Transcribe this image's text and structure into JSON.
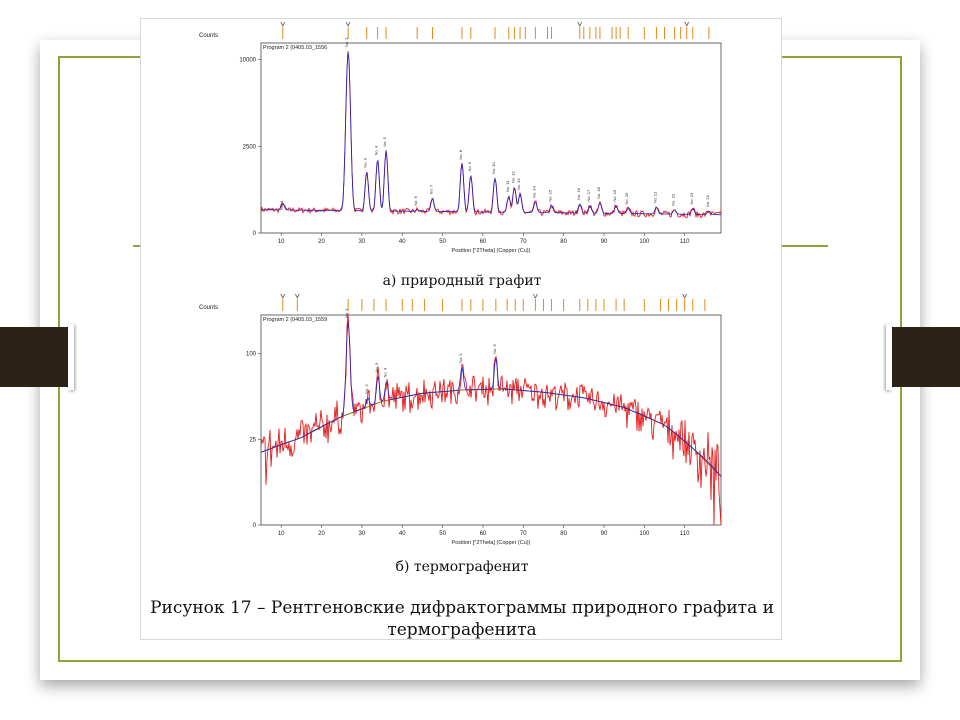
{
  "charts": [
    {
      "caption": "а) природный графит",
      "ylabel": "Counts",
      "legend_text": "Program 2 (0405.03_1556",
      "xlabel": "Position [°2Theta] (Copper (Cu))",
      "yticks": [
        "10000",
        "2500",
        "0"
      ],
      "xticks": [
        "10",
        "20",
        "30",
        "40",
        "50",
        "60",
        "70",
        "80",
        "90",
        "100",
        "110"
      ]
    },
    {
      "caption": "б) термографенит",
      "ylabel": "Counts",
      "legend_text": "Program 2 (0405.03_1559",
      "xlabel": "Position [°2Theta] (Copper (Cu))",
      "yticks": [
        "100",
        "25",
        "0"
      ],
      "xticks": [
        "10",
        "20",
        "30",
        "40",
        "50",
        "60",
        "70",
        "80",
        "90",
        "100",
        "110"
      ]
    }
  ],
  "figure_caption_line1": "Рисунок 17 – Рентгеновские дифрактограммы природного графита и",
  "figure_caption_line2": "термографенита",
  "colors": {
    "accent_green": "#8ea23a",
    "tab_dark": "#2a2316",
    "measured": "#e51b1b",
    "fit": "#2121c8",
    "background_fit": "#8b7a1a",
    "markers": "#e08a1c"
  },
  "chart_data": [
    {
      "type": "line",
      "title": "",
      "xlabel": "Position [°2Theta] (Copper (Cu))",
      "ylabel": "Counts",
      "y_scale": "sqrt",
      "xlim": [
        5,
        119
      ],
      "ylim": [
        0,
        12000
      ],
      "series": [
        {
          "name": "",
          "color": "#e51b1b",
          "peaks": [
            {
              "x": 10.4,
              "y": 120
            },
            {
              "x": 26.6,
              "y": 11000
            },
            {
              "x": 31.2,
              "y": 1250
            },
            {
              "x": 33.9,
              "y": 1800
            },
            {
              "x": 36.0,
              "y": 2250
            },
            {
              "x": 43.7,
              "y": 180
            },
            {
              "x": 47.5,
              "y": 400
            },
            {
              "x": 54.8,
              "y": 1600
            },
            {
              "x": 57.0,
              "y": 1100
            },
            {
              "x": 63.0,
              "y": 1000
            },
            {
              "x": 66.4,
              "y": 450
            },
            {
              "x": 67.8,
              "y": 700
            },
            {
              "x": 69.2,
              "y": 500
            },
            {
              "x": 73.0,
              "y": 320
            },
            {
              "x": 77.0,
              "y": 250
            },
            {
              "x": 84.0,
              "y": 280
            },
            {
              "x": 86.5,
              "y": 250
            },
            {
              "x": 89.0,
              "y": 300
            },
            {
              "x": 93.0,
              "y": 250
            },
            {
              "x": 96.0,
              "y": 200
            },
            {
              "x": 103.0,
              "y": 220
            },
            {
              "x": 107.5,
              "y": 180
            },
            {
              "x": 112.0,
              "y": 200
            },
            {
              "x": 116.0,
              "y": 160
            }
          ],
          "baseline": 180
        }
      ]
    },
    {
      "type": "line",
      "title": "",
      "xlabel": "Position [°2Theta] (Copper (Cu))",
      "ylabel": "Counts",
      "y_scale": "sqrt",
      "xlim": [
        5,
        119
      ],
      "ylim": [
        0,
        150
      ],
      "series": [
        {
          "name": "",
          "color": "#e51b1b",
          "background_curve": [
            {
              "x": 5,
              "y": 18
            },
            {
              "x": 15,
              "y": 26
            },
            {
              "x": 25,
              "y": 40
            },
            {
              "x": 35,
              "y": 52
            },
            {
              "x": 45,
              "y": 59
            },
            {
              "x": 55,
              "y": 62
            },
            {
              "x": 65,
              "y": 63
            },
            {
              "x": 75,
              "y": 60
            },
            {
              "x": 85,
              "y": 55
            },
            {
              "x": 95,
              "y": 47
            },
            {
              "x": 105,
              "y": 34
            },
            {
              "x": 112,
              "y": 20
            },
            {
              "x": 119,
              "y": 8
            }
          ],
          "peaks": [
            {
              "x": 26.6,
              "y": 140
            },
            {
              "x": 31.5,
              "y": 55
            },
            {
              "x": 34.0,
              "y": 75
            },
            {
              "x": 36.1,
              "y": 70
            },
            {
              "x": 54.8,
              "y": 85
            },
            {
              "x": 63.2,
              "y": 95
            }
          ],
          "noise_amplitude": 12
        }
      ]
    }
  ]
}
